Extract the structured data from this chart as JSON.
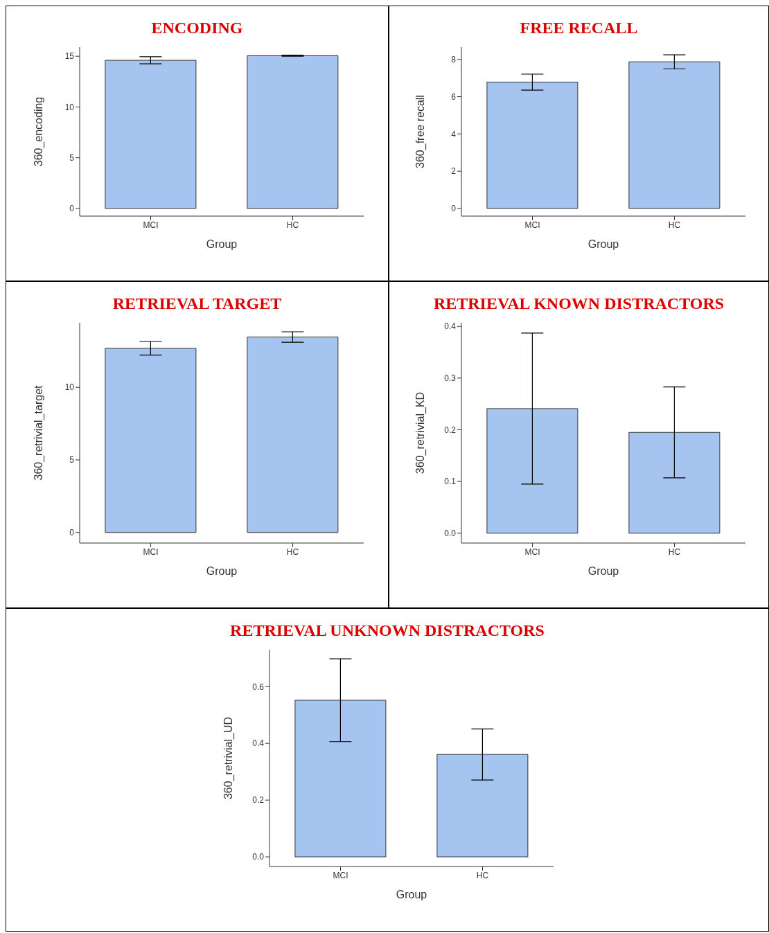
{
  "chart_data": [
    {
      "type": "bar",
      "title": "ENCODING",
      "xlabel": "Group",
      "ylabel": "360_encoding",
      "categories": [
        "MCI",
        "HC"
      ],
      "values": [
        14.6,
        15.05
      ],
      "errors": [
        0.35,
        0.05
      ],
      "color": "#a6c4f0",
      "ylim": [
        -0.75,
        15.9
      ],
      "yticks": [
        0,
        5,
        10,
        15
      ],
      "grid": false
    },
    {
      "type": "bar",
      "title": "FREE RECALL",
      "xlabel": "Group",
      "ylabel": "360_free recall",
      "categories": [
        "MCI",
        "HC"
      ],
      "values": [
        6.78,
        7.87
      ],
      "errors": [
        0.43,
        0.38
      ],
      "color": "#a6c4f0",
      "ylim": [
        -0.41,
        8.66
      ],
      "yticks": [
        0,
        2,
        4,
        6,
        8
      ],
      "grid": false
    },
    {
      "type": "bar",
      "title": "RETRIEVAL TARGET",
      "xlabel": "Group",
      "ylabel": "360_retrivial_target",
      "categories": [
        "MCI",
        "HC"
      ],
      "values": [
        12.69,
        13.47
      ],
      "errors": [
        0.47,
        0.36
      ],
      "color": "#a6c4f0",
      "ylim": [
        -0.73,
        14.45
      ],
      "yticks": [
        0,
        5,
        10
      ],
      "grid": false
    },
    {
      "type": "bar",
      "title": "RETRIEVAL KNOWN DISTRACTORS",
      "xlabel": "Group",
      "ylabel": "360_retrivial_KD",
      "categories": [
        "MCI",
        "HC"
      ],
      "values": [
        0.241,
        0.195
      ],
      "errors": [
        0.146,
        0.088
      ],
      "color": "#a6c4f0",
      "ylim": [
        -0.019,
        0.407
      ],
      "yticks": [
        {
          "value": 0,
          "label": "0.0"
        },
        0.1,
        0.2,
        0.3,
        0.4
      ],
      "grid": false
    },
    {
      "type": "bar",
      "title": "RETRIEVAL UNKNOWN DISTRACTORS",
      "xlabel": "Group",
      "ylabel": "360_retrivial_UD",
      "categories": [
        "MCI",
        "HC"
      ],
      "values": [
        0.552,
        0.361
      ],
      "errors": [
        0.146,
        0.09
      ],
      "color": "#a6c4f0",
      "ylim": [
        -0.034,
        0.73
      ],
      "yticks": [
        {
          "value": 0,
          "label": "0.0"
        },
        0.2,
        0.4,
        0.6
      ],
      "grid": false
    }
  ]
}
